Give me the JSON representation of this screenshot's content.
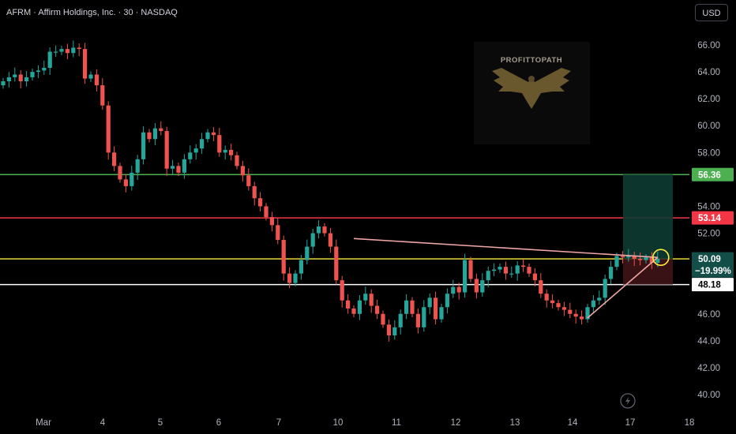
{
  "header": {
    "symbol": "AFRM",
    "name": "Affirm Holdings, Inc.",
    "interval": "30",
    "exchange": "NASDAQ",
    "separator": " · "
  },
  "currency_label": "USD",
  "watermark": {
    "text": "PROFITTOPATH",
    "icon": "eagle-icon"
  },
  "lightning_icon": "lightning-icon",
  "colors": {
    "up": "#26a69a",
    "down": "#ef5350",
    "green_level": "#4caf50",
    "red_level": "#f23645",
    "yellow_level": "#ffeb3b",
    "white_level": "#ffffff",
    "trend_line": "#f0a6a6"
  },
  "chart_data": {
    "type": "candlestick",
    "y_axis": {
      "ticks": [
        "66.00",
        "64.00",
        "62.00",
        "60.00",
        "58.00",
        "54.00",
        "52.00",
        "48.00",
        "46.00",
        "44.00",
        "42.00",
        "40.00"
      ],
      "range": [
        39,
        68
      ]
    },
    "x_axis": {
      "ticks": [
        "Mar",
        "4",
        "5",
        "6",
        "7",
        "10",
        "11",
        "12",
        "13",
        "14",
        "17",
        "18"
      ]
    },
    "levels": [
      {
        "label": "56.36",
        "value": 56.36,
        "color": "#4caf50"
      },
      {
        "label": "53.14",
        "value": 53.14,
        "color": "#f23645"
      },
      {
        "label": "50.09",
        "value": 50.09,
        "color": "#ffeb3b",
        "change": "−19.99%"
      },
      {
        "label": "48.18",
        "value": 48.18,
        "color": "#ffffff"
      }
    ],
    "long_position": {
      "entry": 50.09,
      "target": 56.36,
      "stop": 48.18
    },
    "trend_lines": [
      {
        "from": {
          "bar": 60,
          "price": 51.6
        },
        "to": {
          "bar": 112,
          "price": 50.2
        }
      },
      {
        "from": {
          "bar": 100,
          "price": 45.7
        },
        "to": {
          "bar": 112,
          "price": 50.2
        }
      }
    ],
    "highlight": {
      "bar": 112,
      "price": 50.2
    },
    "candles_close": [
      63.3,
      63.6,
      63.8,
      63.3,
      63.6,
      64.0,
      64.1,
      64.3,
      65.5,
      65.5,
      65.7,
      65.4,
      65.8,
      65.7,
      63.5,
      63.8,
      63.0,
      61.5,
      58.0,
      57.0,
      56.0,
      55.5,
      56.5,
      57.5,
      59.5,
      59.0,
      59.8,
      59.6,
      56.8,
      57.0,
      56.5,
      57.5,
      58.0,
      58.3,
      59.0,
      59.5,
      59.3,
      58.0,
      58.2,
      57.8,
      57.0,
      56.3,
      55.5,
      54.6,
      54.0,
      53.2,
      52.6,
      51.5,
      49.0,
      48.3,
      49.0,
      50.0,
      51.0,
      52.0,
      52.5,
      52.0,
      51.0,
      48.5,
      47.0,
      46.4,
      46.0,
      47.0,
      47.5,
      46.6,
      46.0,
      45.2,
      44.4,
      45.0,
      46.0,
      47.0,
      46.0,
      45.0,
      46.5,
      47.2,
      45.6,
      46.5,
      47.5,
      48.0,
      47.6,
      50.0,
      48.6,
      47.6,
      48.5,
      49.2,
      49.3,
      49.5,
      49.0,
      49.0,
      49.6,
      49.5,
      49.0,
      48.5,
      47.5,
      47.0,
      46.8,
      46.5,
      46.3,
      46.0,
      45.8,
      45.6,
      46.5,
      47.0,
      47.2,
      48.6,
      49.5,
      50.3,
      50.2,
      50.3,
      50.1,
      50.0,
      50.2,
      49.8,
      50.1
    ]
  }
}
